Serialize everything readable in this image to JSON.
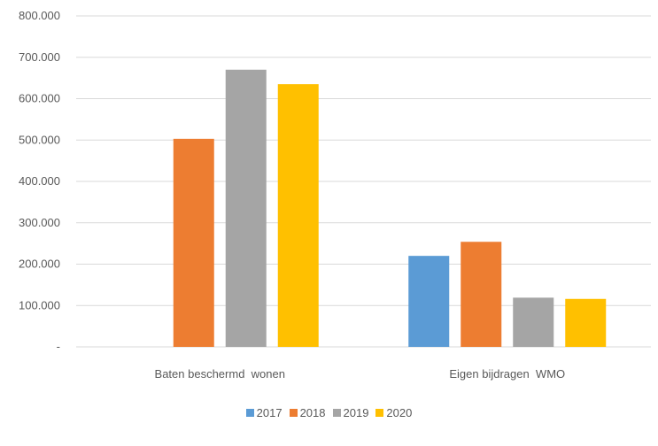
{
  "chart_data": {
    "type": "bar",
    "categories": [
      "Baten beschermd  wonen",
      "Eigen bijdragen  WMO"
    ],
    "series": [
      {
        "name": "2017",
        "color": "#5B9BD5",
        "values": [
          null,
          220000
        ]
      },
      {
        "name": "2018",
        "color": "#ED7D31",
        "values": [
          503000,
          254000
        ]
      },
      {
        "name": "2019",
        "color": "#A5A5A5",
        "values": [
          670000,
          119000
        ]
      },
      {
        "name": "2020",
        "color": "#FFC000",
        "values": [
          635000,
          116000
        ]
      }
    ],
    "ylim": [
      0,
      800000
    ],
    "y_ticks": [
      {
        "value": 0,
        "label": "-"
      },
      {
        "value": 100000,
        "label": "100.000"
      },
      {
        "value": 200000,
        "label": "200.000"
      },
      {
        "value": 300000,
        "label": "300.000"
      },
      {
        "value": 400000,
        "label": "400.000"
      },
      {
        "value": 500000,
        "label": "500.000"
      },
      {
        "value": 600000,
        "label": "600.000"
      },
      {
        "value": 700000,
        "label": "700.000"
      },
      {
        "value": 800000,
        "label": "800.000"
      }
    ],
    "grid": true,
    "gridline_color": "#D9D9D9",
    "legend_position": "bottom"
  }
}
